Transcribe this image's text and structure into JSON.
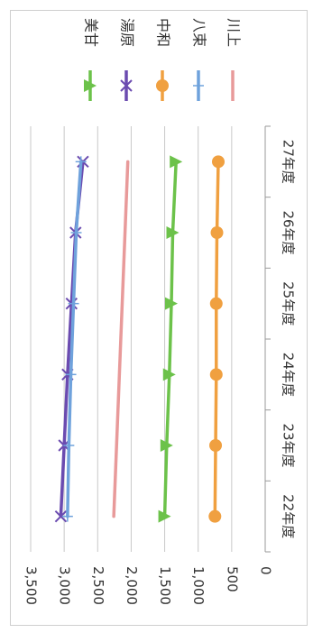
{
  "chart_data": {
    "type": "line",
    "orientation": "rotated-90-clockwise",
    "categories": [
      "22年度",
      "23年度",
      "24年度",
      "25年度",
      "26年度",
      "27年度"
    ],
    "ylim": [
      0,
      3500
    ],
    "yticks": [
      0,
      500,
      1000,
      1500,
      2000,
      2500,
      3000,
      3500
    ],
    "ytick_labels": [
      "0",
      "500",
      "1,000",
      "1,500",
      "2,000",
      "2,500",
      "3,000",
      "3,500"
    ],
    "grid": true,
    "legend_position": "top",
    "series": [
      {
        "name": "美甘",
        "color": "#6cc24a",
        "marker": "triangle",
        "values": [
          1500,
          1470,
          1430,
          1400,
          1380,
          1330
        ]
      },
      {
        "name": "湯原",
        "color": "#6b4bb0",
        "marker": "x",
        "values": [
          3050,
          3000,
          2950,
          2890,
          2830,
          2720
        ]
      },
      {
        "name": "中和",
        "color": "#f0a040",
        "marker": "circle",
        "values": [
          750,
          740,
          730,
          730,
          720,
          700
        ]
      },
      {
        "name": "八束",
        "color": "#6fa2dc",
        "marker": "plus",
        "values": [
          2950,
          2930,
          2900,
          2860,
          2820,
          2750
        ]
      },
      {
        "name": "川上",
        "color": "#e89a9a",
        "marker": "none",
        "values": [
          2260,
          null,
          null,
          null,
          null,
          2050
        ]
      }
    ]
  }
}
